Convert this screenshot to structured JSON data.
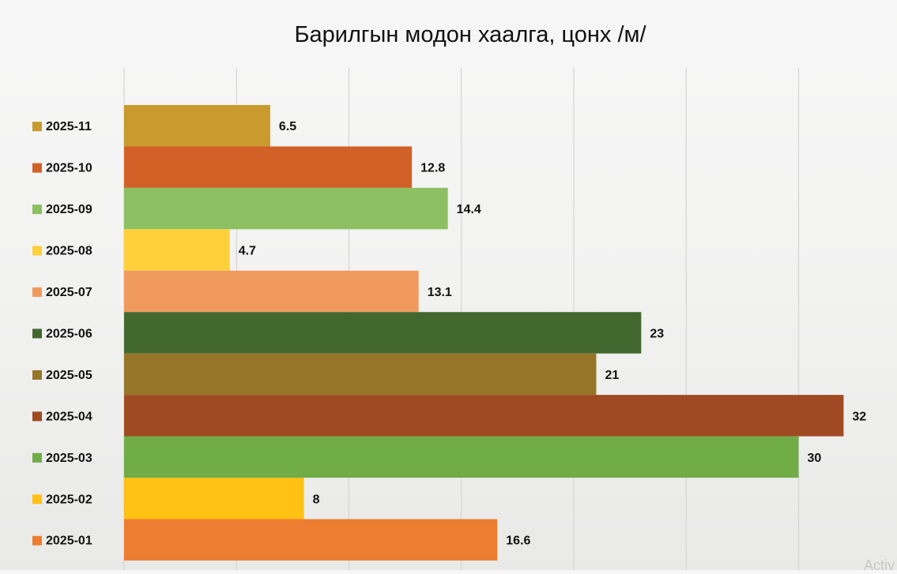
{
  "chart_data": {
    "type": "bar",
    "orientation": "horizontal",
    "title": "Барилгын модон хаалга, цонх /м/",
    "xlabel": "",
    "ylabel": "",
    "xlim": [
      0,
      35
    ],
    "grid": true,
    "grid_step": 5,
    "legend_placement": "left",
    "categories": [
      "2025-11",
      "2025-10",
      "2025-09",
      "2025-08",
      "2025-07",
      "2025-06",
      "2025-05",
      "2025-04",
      "2025-03",
      "2025-02",
      "2025-01"
    ],
    "values": [
      6.5,
      12.8,
      14.4,
      4.7,
      13.1,
      23,
      21,
      32,
      30,
      8,
      16.6
    ],
    "value_labels": [
      "6.5",
      "12.8",
      "14.4",
      "4.7",
      "13.1",
      "23",
      "21",
      "32",
      "30",
      "8",
      "16.6"
    ],
    "colors": [
      "#c99a2e",
      "#d26127",
      "#8dc063",
      "#ffd03a",
      "#f19a5e",
      "#43682f",
      "#977529",
      "#9f4a23",
      "#70ad47",
      "#ffc114",
      "#ed7d31"
    ]
  },
  "watermark": "Activ"
}
